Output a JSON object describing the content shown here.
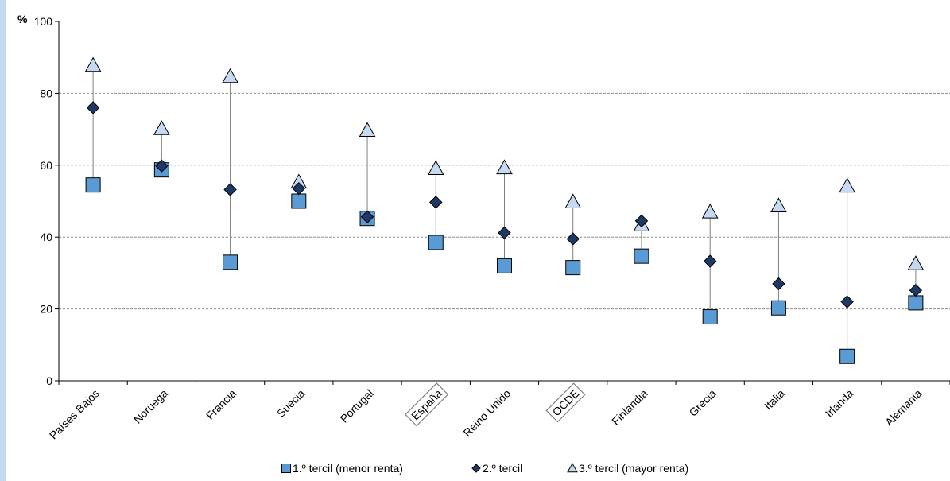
{
  "chart_data": {
    "type": "scatter",
    "title": "",
    "ylabel": "%",
    "ylim": [
      0,
      100
    ],
    "yticks": [
      0,
      20,
      40,
      60,
      80,
      100
    ],
    "grid": true,
    "legend_position": "bottom",
    "categories": [
      "Países Bajos",
      "Noruega",
      "Francia",
      "Suecia",
      "Portugal",
      "España",
      "Reino Unido",
      "OCDE",
      "Finlandia",
      "Grecia",
      "Italia",
      "Irlanda",
      "Alemania"
    ],
    "boxed_categories": [
      "España",
      "OCDE"
    ],
    "series": [
      {
        "name": "1.º tercil (menor renta)",
        "marker": "square",
        "color": "#5b9bd5",
        "values": [
          54.5,
          58.7,
          33,
          50,
          45.2,
          38.5,
          32,
          31.5,
          34.7,
          17.8,
          20.3,
          6.8,
          21.7
        ]
      },
      {
        "name": "2.º tercil",
        "marker": "diamond",
        "color": "#1f3864",
        "values": [
          76,
          59.8,
          53.2,
          53.5,
          45.6,
          49.7,
          41.2,
          39.5,
          44.5,
          33.3,
          27,
          22,
          25.2
        ]
      },
      {
        "name": "3.º tercil (mayor renta)",
        "marker": "triangle",
        "color": "#c5d9f1",
        "values": [
          87.8,
          70.2,
          84.7,
          55.3,
          69.7,
          59.1,
          59.3,
          49.8,
          43.4,
          47,
          48.7,
          54.2,
          32.6
        ]
      }
    ]
  }
}
